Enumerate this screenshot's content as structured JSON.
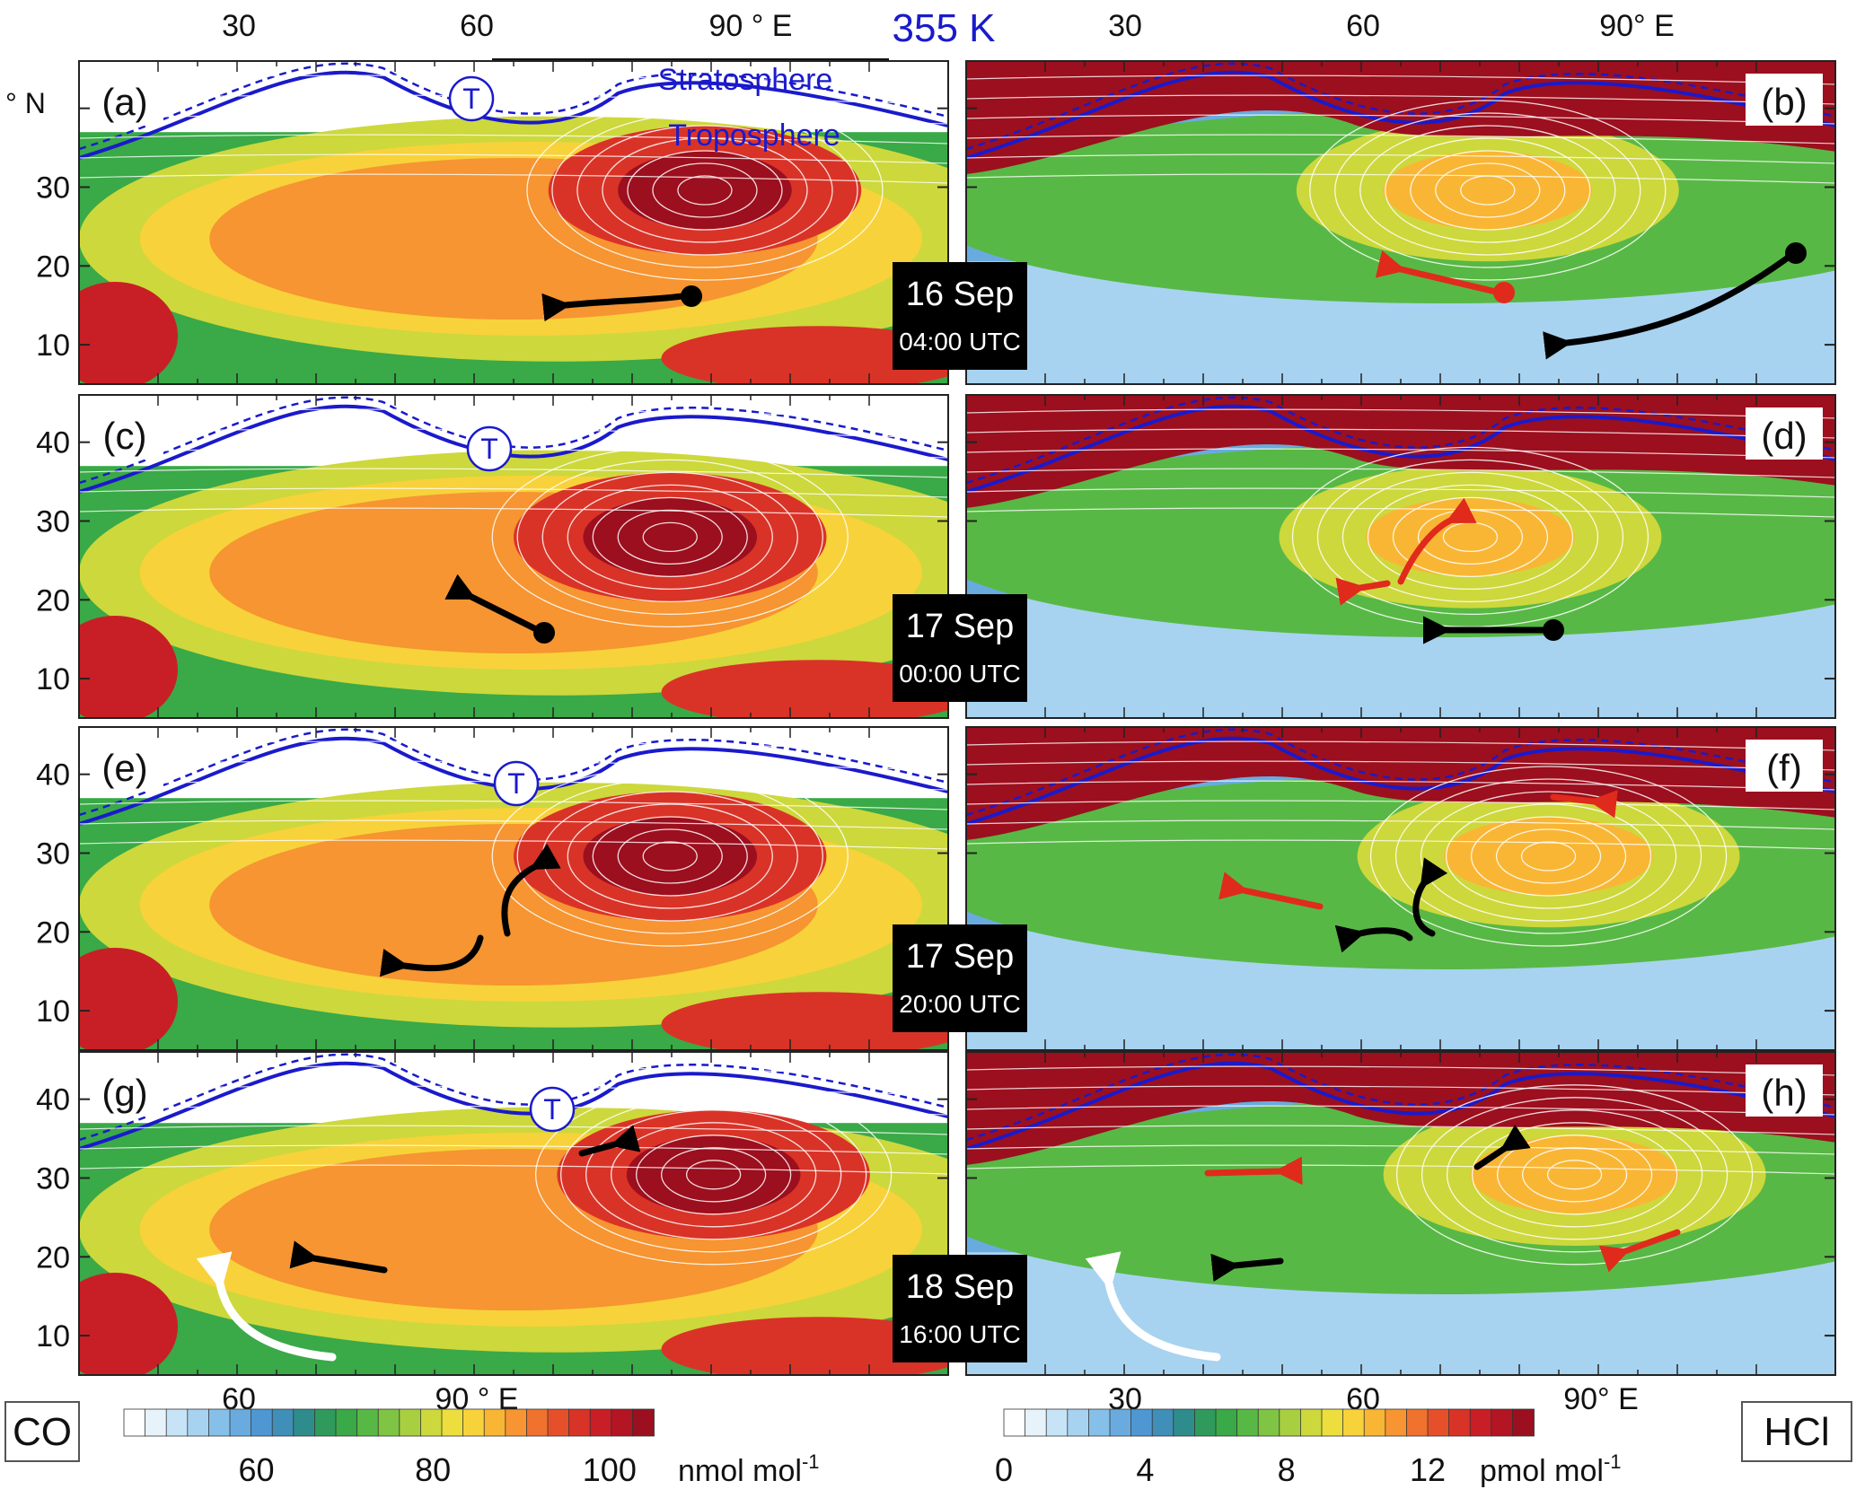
{
  "figure": {
    "level_label": "355 K",
    "lat_unit": "° N",
    "colors": {
      "tropopause": "#1a1acc",
      "stream": "#ffffff",
      "arrow_black": "#000000",
      "arrow_red": "#e02a1c",
      "timebox_bg": "#000000",
      "timebox_text": "#ffffff"
    },
    "annotations": {
      "stratosphere": "Stratosphere",
      "troposphere": "Troposphere",
      "trough_marker": "T"
    },
    "timestamps": [
      {
        "date": "16 Sep",
        "time": "04:00 UTC"
      },
      {
        "date": "17 Sep",
        "time": "00:00 UTC"
      },
      {
        "date": "17 Sep",
        "time": "20:00 UTC"
      },
      {
        "date": "18 Sep",
        "time": "16:00 UTC"
      }
    ]
  },
  "chart_data": [
    {
      "type": "heatmap",
      "title": "CO",
      "panels": [
        "(a)",
        "(c)",
        "(e)",
        "(g)"
      ],
      "x_ticks_top": [
        "30",
        "60",
        "90 ° E"
      ],
      "x_ticks_bottom": [
        "60",
        "90 ° E"
      ],
      "x_tick_values": [
        30,
        60,
        90
      ],
      "y_ticks": [
        10,
        20,
        30,
        40
      ],
      "xlim": [
        10,
        120
      ],
      "ylim": [
        5,
        46
      ],
      "colorbar": {
        "label": "CO",
        "ticks": [
          60,
          80,
          100
        ],
        "unit": "nmol mol",
        "unit_exp": "-1",
        "range": [
          45,
          105
        ],
        "colors": [
          "#ffffff",
          "#e6f3fb",
          "#c7e4f6",
          "#a7d3f0",
          "#86c0e8",
          "#69abde",
          "#4f97d3",
          "#3f8fb8",
          "#2f8c8c",
          "#2f9a5c",
          "#3aa948",
          "#58b845",
          "#80c443",
          "#a8cf3f",
          "#cdd83c",
          "#ecdf3d",
          "#f8d23a",
          "#f9b635",
          "#f69531",
          "#ef722d",
          "#e5502a",
          "#d93327",
          "#c81f26",
          "#b31523",
          "#9c0f1e"
        ]
      }
    },
    {
      "type": "heatmap",
      "title": "HCl",
      "panels": [
        "(b)",
        "(d)",
        "(f)",
        "(h)"
      ],
      "x_ticks_top": [
        "30",
        "60",
        "90° E"
      ],
      "x_ticks_bottom": [
        "30",
        "60",
        "90° E"
      ],
      "x_tick_values": [
        30,
        60,
        90
      ],
      "y_ticks": [
        10,
        20,
        30,
        40
      ],
      "xlim": [
        10,
        120
      ],
      "ylim": [
        5,
        46
      ],
      "colorbar": {
        "label": "HCl",
        "ticks": [
          0,
          4,
          8,
          12
        ],
        "unit": "pmol mol",
        "unit_exp": "-1",
        "range": [
          0,
          15
        ],
        "colors": [
          "#ffffff",
          "#e6f3fb",
          "#c7e4f6",
          "#a7d3f0",
          "#86c0e8",
          "#69abde",
          "#4f97d3",
          "#3f8fb8",
          "#2f8c8c",
          "#2f9a5c",
          "#3aa948",
          "#58b845",
          "#80c443",
          "#a8cf3f",
          "#cdd83c",
          "#ecdf3d",
          "#f8d23a",
          "#f9b635",
          "#f69531",
          "#ef722d",
          "#e5502a",
          "#d93327",
          "#c81f26",
          "#b31523",
          "#9c0f1e"
        ]
      }
    }
  ]
}
